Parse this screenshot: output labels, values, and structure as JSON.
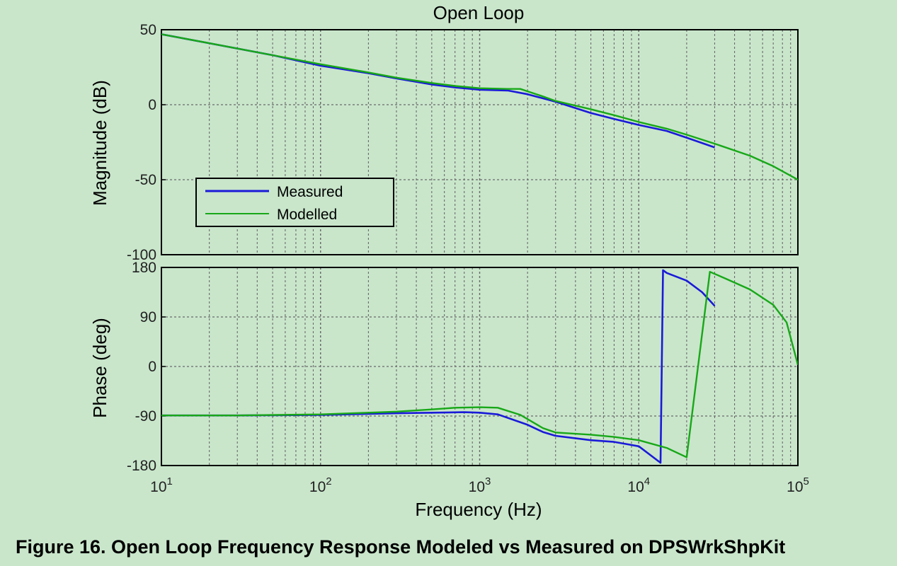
{
  "figure": {
    "title": "Open Loop",
    "caption": "Figure 16. Open Loop Frequency Response Modeled vs Measured on DPSWrkShpKit",
    "xlabel": "Frequency  (Hz)",
    "colors": {
      "measured": "#1a1ad8",
      "modelled": "#18a818",
      "background": "#c9e6cb",
      "grid": "#6a6a6a"
    }
  },
  "chart_data": [
    {
      "type": "line",
      "title": "Open Loop",
      "ylabel": "Magnitude (dB)",
      "xlabel": "",
      "xscale": "log",
      "xlim": [
        10,
        100000
      ],
      "ylim": [
        -100,
        50
      ],
      "yticks": [
        50,
        0,
        -50,
        -100
      ],
      "grid": true,
      "legend": "center-left",
      "series": [
        {
          "name": "Measured",
          "color": "#1a1ad8",
          "x": [
            10,
            20,
            50,
            100,
            200,
            300,
            500,
            700,
            1000,
            1500,
            2000,
            3000,
            5000,
            7000,
            10000,
            15000,
            20000,
            30000
          ],
          "y": [
            47,
            41,
            33,
            26,
            21,
            17.5,
            13.5,
            11.5,
            10,
            9.5,
            7,
            2,
            -5.5,
            -9.5,
            -13.5,
            -17.5,
            -22,
            -28.5
          ]
        },
        {
          "name": "Modelled",
          "color": "#18a818",
          "x": [
            10,
            20,
            50,
            100,
            200,
            300,
            500,
            700,
            1000,
            1500,
            1800,
            2500,
            3000,
            5000,
            7000,
            10000,
            15000,
            20000,
            30000,
            50000,
            70000,
            100000
          ],
          "y": [
            47,
            41,
            33,
            27,
            21.5,
            18,
            14.5,
            12.5,
            11,
            10.5,
            10.5,
            5.5,
            2.5,
            -3,
            -7,
            -11.5,
            -16,
            -20,
            -26,
            -34,
            -41,
            -50
          ]
        }
      ]
    },
    {
      "type": "line",
      "title": "",
      "ylabel": "Phase (deg)",
      "xlabel": "Frequency  (Hz)",
      "xscale": "log",
      "xlim": [
        10,
        100000
      ],
      "ylim": [
        -180,
        180
      ],
      "yticks": [
        180,
        90,
        0,
        -90,
        -180
      ],
      "xticks": [
        10,
        100,
        1000,
        10000,
        100000
      ],
      "xticklabels": [
        {
          "base": "10",
          "exp": "1"
        },
        {
          "base": "10",
          "exp": "2"
        },
        {
          "base": "10",
          "exp": "3"
        },
        {
          "base": "10",
          "exp": "4"
        },
        {
          "base": "10",
          "exp": "5"
        }
      ],
      "grid": true,
      "series": [
        {
          "name": "Measured",
          "color": "#1a1ad8",
          "x": [
            10,
            30,
            100,
            200,
            300,
            500,
            800,
            1000,
            1300,
            2000,
            2500,
            3000,
            5000,
            7000,
            10000,
            13700,
            14200,
            15000,
            20000,
            25000,
            30000
          ],
          "y": [
            -89,
            -89,
            -88,
            -86,
            -85,
            -84,
            -83,
            -84,
            -87,
            -106,
            -119,
            -126,
            -134,
            -137,
            -145,
            -175,
            175,
            170,
            156,
            135,
            110
          ]
        },
        {
          "name": "Modelled",
          "color": "#18a818",
          "x": [
            10,
            30,
            100,
            200,
            300,
            500,
            700,
            1000,
            1300,
            1800,
            2500,
            3000,
            5000,
            7000,
            10000,
            15000,
            20000,
            28000,
            35000,
            50000,
            70000,
            85000,
            100000
          ],
          "y": [
            -89,
            -89,
            -87,
            -84,
            -82,
            -78,
            -75,
            -74,
            -75,
            -88,
            -112,
            -120,
            -124,
            -128,
            -134,
            -148,
            -165,
            172,
            160,
            140,
            112,
            80,
            3
          ]
        }
      ]
    }
  ]
}
